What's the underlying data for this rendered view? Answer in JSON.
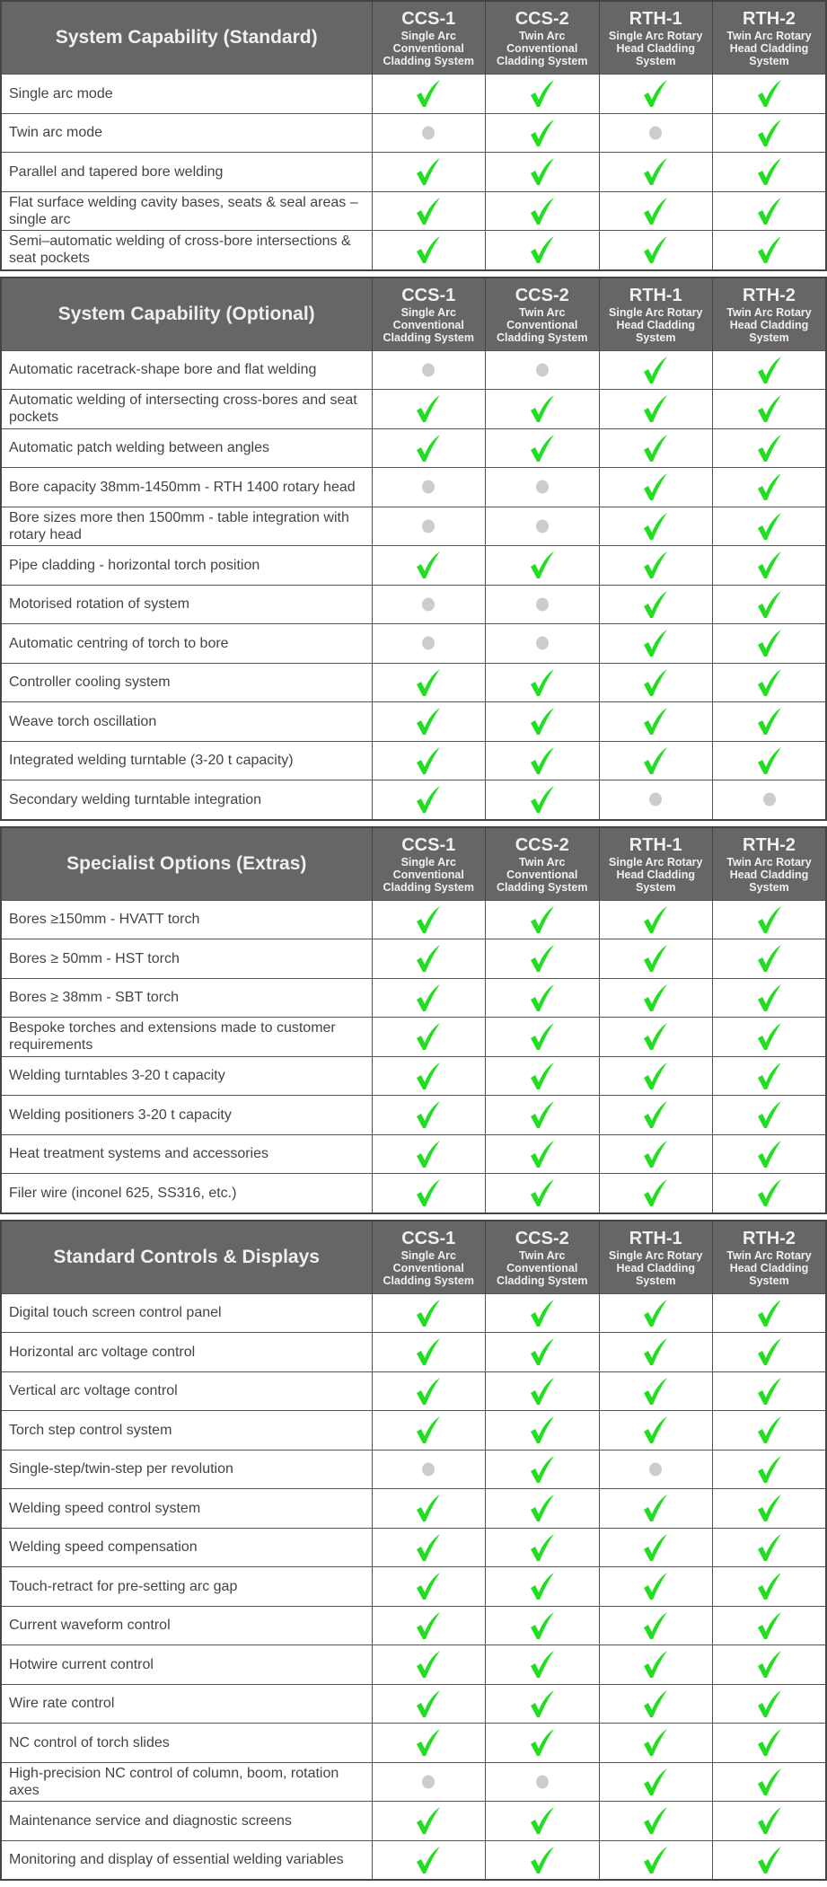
{
  "colors": {
    "header_bg": "#666666",
    "check": "#22dd22",
    "unavailable": "#cccccc"
  },
  "legend_icons": {
    "yes": "check-icon",
    "no": "grey-dot-icon"
  },
  "columns": [
    {
      "code": "CCS-1",
      "desc": "Single Arc Conventional Cladding System"
    },
    {
      "code": "CCS-2",
      "desc": "Twin Arc Conventional Cladding System"
    },
    {
      "code": "RTH-1",
      "desc": "Single Arc Rotary Head Cladding System"
    },
    {
      "code": "RTH-2",
      "desc": "Twin Arc Rotary Head Cladding System"
    }
  ],
  "tables": [
    {
      "title": "System Capability (Standard)",
      "rows": [
        {
          "label": "Single arc mode",
          "values": [
            "yes",
            "yes",
            "yes",
            "yes"
          ]
        },
        {
          "label": "Twin arc mode",
          "values": [
            "no",
            "yes",
            "no",
            "yes"
          ]
        },
        {
          "label": "Parallel and tapered bore welding",
          "values": [
            "yes",
            "yes",
            "yes",
            "yes"
          ]
        },
        {
          "label": "Flat surface welding cavity bases, seats & seal areas – single arc",
          "values": [
            "yes",
            "yes",
            "yes",
            "yes"
          ]
        },
        {
          "label": "Semi–automatic welding of cross-bore intersections & seat pockets",
          "values": [
            "yes",
            "yes",
            "yes",
            "yes"
          ]
        }
      ]
    },
    {
      "title": "System Capability (Optional)",
      "rows": [
        {
          "label": "Automatic racetrack-shape bore and flat welding",
          "values": [
            "no",
            "no",
            "yes",
            "yes"
          ]
        },
        {
          "label": "Automatic welding of intersecting cross-bores and seat pockets",
          "values": [
            "yes",
            "yes",
            "yes",
            "yes"
          ]
        },
        {
          "label": "Automatic patch welding between angles",
          "values": [
            "yes",
            "yes",
            "yes",
            "yes"
          ]
        },
        {
          "label": "Bore capacity 38mm-1450mm - RTH 1400 rotary head",
          "values": [
            "no",
            "no",
            "yes",
            "yes"
          ]
        },
        {
          "label": "Bore sizes more then 1500mm - table integration with rotary head",
          "values": [
            "no",
            "no",
            "yes",
            "yes"
          ]
        },
        {
          "label": "Pipe cladding - horizontal torch position",
          "values": [
            "yes",
            "yes",
            "yes",
            "yes"
          ]
        },
        {
          "label": "Motorised rotation of system",
          "values": [
            "no",
            "no",
            "yes",
            "yes"
          ]
        },
        {
          "label": "Automatic centring of torch to bore",
          "values": [
            "no",
            "no",
            "yes",
            "yes"
          ]
        },
        {
          "label": "Controller cooling system",
          "values": [
            "yes",
            "yes",
            "yes",
            "yes"
          ]
        },
        {
          "label": "Weave torch oscillation",
          "values": [
            "yes",
            "yes",
            "yes",
            "yes"
          ]
        },
        {
          "label": "Integrated welding turntable (3-20 t capacity)",
          "values": [
            "yes",
            "yes",
            "yes",
            "yes"
          ]
        },
        {
          "label": "Secondary welding turntable integration",
          "values": [
            "yes",
            "yes",
            "no",
            "no"
          ]
        }
      ]
    },
    {
      "title": "Specialist Options (Extras)",
      "rows": [
        {
          "label": "Bores ≥150mm - HVATT torch",
          "values": [
            "yes",
            "yes",
            "yes",
            "yes"
          ]
        },
        {
          "label": "Bores ≥ 50mm - HST torch",
          "values": [
            "yes",
            "yes",
            "yes",
            "yes"
          ]
        },
        {
          "label": "Bores ≥ 38mm - SBT torch",
          "values": [
            "yes",
            "yes",
            "yes",
            "yes"
          ]
        },
        {
          "label": "Bespoke torches and extensions made to customer requirements",
          "values": [
            "yes",
            "yes",
            "yes",
            "yes"
          ]
        },
        {
          "label": "Welding turntables 3-20 t capacity",
          "values": [
            "yes",
            "yes",
            "yes",
            "yes"
          ]
        },
        {
          "label": "Welding positioners 3-20 t capacity",
          "values": [
            "yes",
            "yes",
            "yes",
            "yes"
          ]
        },
        {
          "label": "Heat treatment systems and accessories",
          "values": [
            "yes",
            "yes",
            "yes",
            "yes"
          ]
        },
        {
          "label": "Filer wire (inconel 625, SS316, etc.)",
          "values": [
            "yes",
            "yes",
            "yes",
            "yes"
          ]
        }
      ]
    },
    {
      "title": "Standard Controls & Displays",
      "rows": [
        {
          "label": "Digital touch screen control panel",
          "values": [
            "yes",
            "yes",
            "yes",
            "yes"
          ]
        },
        {
          "label": "Horizontal arc voltage control",
          "values": [
            "yes",
            "yes",
            "yes",
            "yes"
          ]
        },
        {
          "label": "Vertical arc voltage control",
          "values": [
            "yes",
            "yes",
            "yes",
            "yes"
          ]
        },
        {
          "label": "Torch step control system",
          "values": [
            "yes",
            "yes",
            "yes",
            "yes"
          ]
        },
        {
          "label": "Single-step/twin-step per revolution",
          "values": [
            "no",
            "yes",
            "no",
            "yes"
          ]
        },
        {
          "label": "Welding speed control system",
          "values": [
            "yes",
            "yes",
            "yes",
            "yes"
          ]
        },
        {
          "label": "Welding speed compensation",
          "values": [
            "yes",
            "yes",
            "yes",
            "yes"
          ]
        },
        {
          "label": "Touch-retract for pre-setting arc gap",
          "values": [
            "yes",
            "yes",
            "yes",
            "yes"
          ]
        },
        {
          "label": "Current waveform control",
          "values": [
            "yes",
            "yes",
            "yes",
            "yes"
          ]
        },
        {
          "label": "Hotwire current control",
          "values": [
            "yes",
            "yes",
            "yes",
            "yes"
          ]
        },
        {
          "label": "Wire rate control",
          "values": [
            "yes",
            "yes",
            "yes",
            "yes"
          ]
        },
        {
          "label": "NC control of torch slides",
          "values": [
            "yes",
            "yes",
            "yes",
            "yes"
          ]
        },
        {
          "label": "High-precision NC control of column, boom, rotation axes",
          "values": [
            "no",
            "no",
            "yes",
            "yes"
          ]
        },
        {
          "label": "Maintenance service and diagnostic screens",
          "values": [
            "yes",
            "yes",
            "yes",
            "yes"
          ]
        },
        {
          "label": "Monitoring and display of essential welding variables",
          "values": [
            "yes",
            "yes",
            "yes",
            "yes"
          ]
        }
      ]
    }
  ]
}
